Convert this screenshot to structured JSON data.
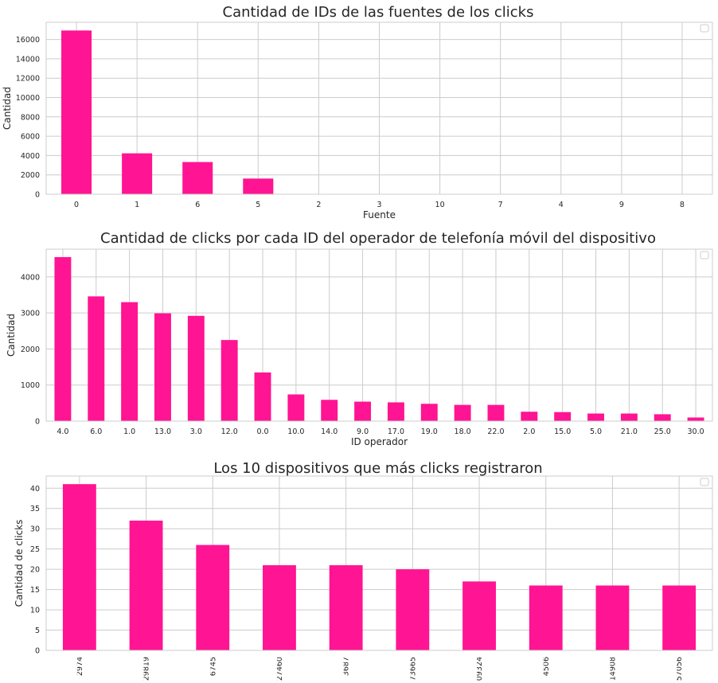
{
  "colors": {
    "bar": "#ff1493",
    "grid": "#cccccc",
    "text": "#262626"
  },
  "chart_data": [
    {
      "type": "bar",
      "title": "Cantidad de IDs de las fuentes de los clicks",
      "xlabel": "Fuente",
      "ylabel": "Cantidad",
      "categories": [
        "0",
        "1",
        "6",
        "5",
        "2",
        "3",
        "10",
        "7",
        "4",
        "9",
        "8"
      ],
      "values": [
        16930,
        4230,
        3330,
        1620,
        6,
        4,
        2,
        1,
        1,
        1,
        1
      ],
      "ylim": [
        0,
        17780
      ],
      "yticks": [
        0,
        2000,
        4000,
        6000,
        8000,
        10000,
        12000,
        14000,
        16000
      ],
      "grid": true,
      "legend": "top-right"
    },
    {
      "type": "bar",
      "title": "Cantidad de clicks por cada ID del operador de telefonía móvil del dispositivo",
      "xlabel": "ID operador",
      "ylabel": "Cantidad",
      "categories": [
        "4.0",
        "6.0",
        "1.0",
        "13.0",
        "3.0",
        "12.0",
        "0.0",
        "10.0",
        "14.0",
        "9.0",
        "17.0",
        "19.0",
        "18.0",
        "22.0",
        "2.0",
        "15.0",
        "5.0",
        "21.0",
        "25.0",
        "30.0"
      ],
      "values": [
        4550,
        3460,
        3300,
        2990,
        2920,
        2250,
        1350,
        740,
        590,
        540,
        520,
        480,
        450,
        450,
        260,
        250,
        210,
        210,
        190,
        100
      ],
      "ylim": [
        0,
        4770
      ],
      "yticks": [
        0,
        1000,
        2000,
        3000,
        4000
      ],
      "grid": true,
      "legend": "top-right"
    },
    {
      "type": "bar",
      "title": "Los 10 dispositivos que más clicks registraron",
      "xlabel": "",
      "ylabel": "Cantidad de clicks",
      "categories": [
        "2974",
        "29819",
        "6745",
        "27460",
        "3687",
        "73665",
        "09324",
        "4506",
        "14908",
        "57056"
      ],
      "values": [
        41,
        32,
        26,
        21,
        21,
        20,
        17,
        16,
        16,
        16
      ],
      "ylim": [
        0,
        43
      ],
      "yticks": [
        0,
        5,
        10,
        15,
        20,
        25,
        30,
        35,
        40
      ],
      "grid": true,
      "legend": "top-right"
    }
  ]
}
